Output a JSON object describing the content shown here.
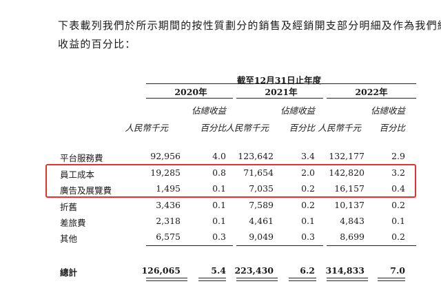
{
  "intro": [
    "下表載列我們於所示期間的按性質劃分的銷售及經銷開支部分明細及作為我們總",
    "收益的百分比："
  ],
  "table": {
    "period_header": "截至12月31日止年度",
    "years": [
      "2020年",
      "2021年",
      "2022年"
    ],
    "col_headers": {
      "rmb": "人民幣千元",
      "pct_line1": "佔總收益",
      "pct_line2": "百分比"
    },
    "rows": [
      {
        "label": "平台服務費",
        "v2020": "92,956",
        "p2020": "4.0",
        "v2021": "123,642",
        "p2021": "3.4",
        "v2022": "132,177",
        "p2022": "2.9"
      },
      {
        "label": "員工成本",
        "v2020": "19,285",
        "p2020": "0.8",
        "v2021": "71,654",
        "p2021": "2.0",
        "v2022": "142,820",
        "p2022": "3.2"
      },
      {
        "label": "廣告及展覽費",
        "v2020": "1,495",
        "p2020": "0.1",
        "v2021": "7,035",
        "p2021": "0.2",
        "v2022": "16,157",
        "p2022": "0.4"
      },
      {
        "label": "折舊",
        "v2020": "3,436",
        "p2020": "0.1",
        "v2021": "7,589",
        "p2021": "0.2",
        "v2022": "10,137",
        "p2022": "0.2"
      },
      {
        "label": "差旅費",
        "v2020": "2,318",
        "p2020": "0.1",
        "v2021": "4,461",
        "p2021": "0.1",
        "v2022": "4,843",
        "p2022": "0.1"
      },
      {
        "label": "其他",
        "v2020": "6,575",
        "p2020": "0.3",
        "v2021": "9,049",
        "p2021": "0.3",
        "v2022": "8,699",
        "p2022": "0.2"
      }
    ],
    "total": {
      "label": "總計",
      "v2020": "126,065",
      "p2020": "5.4",
      "v2021": "223,430",
      "p2021": "6.2",
      "v2022": "314,833",
      "p2022": "7.0"
    }
  },
  "highlight_color": "#e53030"
}
